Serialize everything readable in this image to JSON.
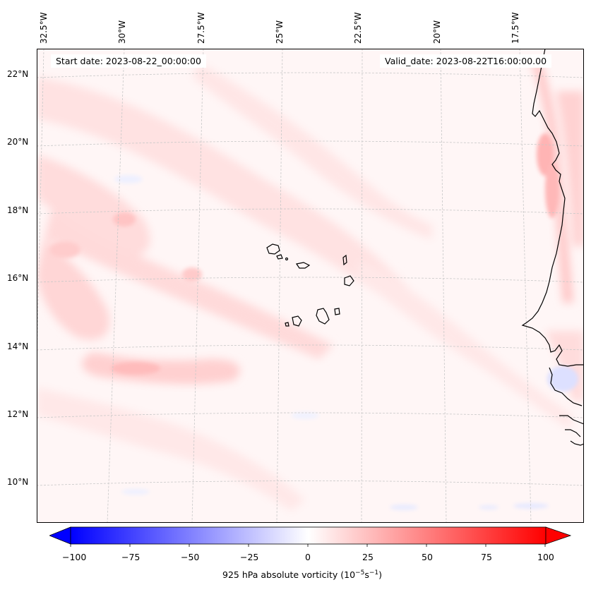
{
  "header": {
    "start_date": "Start date: 2023-08-22_00:00:00",
    "valid_date": "Valid_date: 2023-08-22T16:00:00.00"
  },
  "map": {
    "longitude_labels": [
      "32.5°W",
      "30°W",
      "27.5°W",
      "25°W",
      "22.5°W",
      "20°W",
      "17.5°W"
    ],
    "latitude_labels": [
      "22°N",
      "20°N",
      "18°N",
      "16°N",
      "14°N",
      "12°N",
      "10°N"
    ],
    "features": [
      "cape-verde-islands",
      "west-africa-coastline",
      "vorticity-contours"
    ]
  },
  "colorbar": {
    "ticks": [
      "−100",
      "−75",
      "−50",
      "−25",
      "0",
      "25",
      "50",
      "75",
      "100"
    ],
    "label_text": "925 hPa absolute vorticity (10",
    "label_exp1": "−5",
    "label_mid": "s",
    "label_exp2": "−1",
    "label_close": ")",
    "color_min": "#0000ff",
    "color_mid": "#ffffff",
    "color_max": "#ff0000"
  }
}
